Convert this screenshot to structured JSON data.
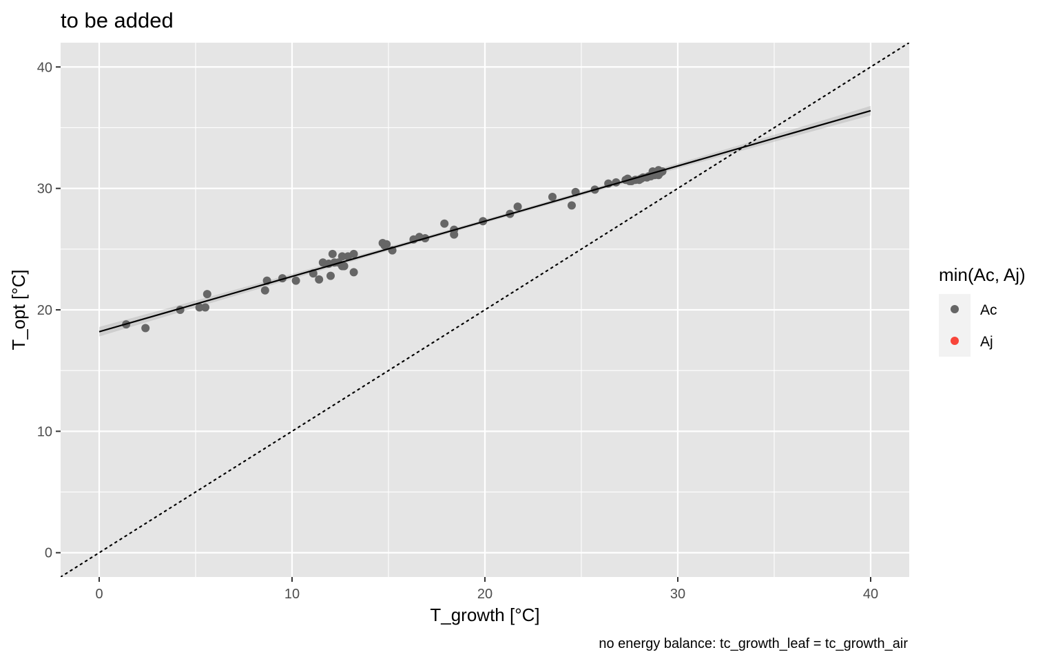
{
  "chart_data": {
    "type": "scatter",
    "title": "to be added",
    "caption": "no energy balance: tc_growth_leaf = tc_growth_air",
    "xlabel": "T_growth [°C]",
    "ylabel": "T_opt [°C]",
    "xlim": [
      -2,
      42
    ],
    "ylim": [
      -2,
      42
    ],
    "x_ticks": [
      0,
      10,
      20,
      30,
      40
    ],
    "y_ticks": [
      0,
      10,
      20,
      30,
      40
    ],
    "x_tick_labels": [
      "0",
      "10",
      "20",
      "30",
      "40"
    ],
    "y_tick_labels": [
      "0",
      "10",
      "20",
      "30",
      "40"
    ],
    "grid": true,
    "legend": {
      "title": "min(Ac, Aj)",
      "placement": "right",
      "entries": [
        {
          "label": "Ac",
          "color": "#666666"
        },
        {
          "label": "Aj",
          "color": "#f8453a"
        }
      ]
    },
    "series": [
      {
        "name": "Ac",
        "color": "#666666",
        "points": [
          [
            1.4,
            18.8
          ],
          [
            2.4,
            18.5
          ],
          [
            4.2,
            20.0
          ],
          [
            5.2,
            20.2
          ],
          [
            5.5,
            20.2
          ],
          [
            5.6,
            21.3
          ],
          [
            8.6,
            21.6
          ],
          [
            8.7,
            22.4
          ],
          [
            9.5,
            22.6
          ],
          [
            10.2,
            22.4
          ],
          [
            11.1,
            23.0
          ],
          [
            11.4,
            22.5
          ],
          [
            11.6,
            23.9
          ],
          [
            11.9,
            23.8
          ],
          [
            12.0,
            22.8
          ],
          [
            12.1,
            24.6
          ],
          [
            12.2,
            23.9
          ],
          [
            12.4,
            23.9
          ],
          [
            12.6,
            23.6
          ],
          [
            12.6,
            24.4
          ],
          [
            12.7,
            23.6
          ],
          [
            12.9,
            24.4
          ],
          [
            13.2,
            23.1
          ],
          [
            13.2,
            24.6
          ],
          [
            14.7,
            25.5
          ],
          [
            14.8,
            25.3
          ],
          [
            14.9,
            25.4
          ],
          [
            15.2,
            24.9
          ],
          [
            16.3,
            25.8
          ],
          [
            16.6,
            26.0
          ],
          [
            16.9,
            25.9
          ],
          [
            17.9,
            27.1
          ],
          [
            18.4,
            26.6
          ],
          [
            18.4,
            26.2
          ],
          [
            19.9,
            27.3
          ],
          [
            21.3,
            27.9
          ],
          [
            21.7,
            28.5
          ],
          [
            23.5,
            29.3
          ],
          [
            24.5,
            28.6
          ],
          [
            24.7,
            29.7
          ],
          [
            25.7,
            29.9
          ],
          [
            26.4,
            30.4
          ],
          [
            26.8,
            30.5
          ],
          [
            27.3,
            30.7
          ],
          [
            27.4,
            30.8
          ],
          [
            27.5,
            30.6
          ],
          [
            27.6,
            30.6
          ],
          [
            27.8,
            30.7
          ],
          [
            28.0,
            30.7
          ],
          [
            28.1,
            30.8
          ],
          [
            28.2,
            30.9
          ],
          [
            28.4,
            30.9
          ],
          [
            28.5,
            31.0
          ],
          [
            28.6,
            31.0
          ],
          [
            28.7,
            31.4
          ],
          [
            28.8,
            31.1
          ],
          [
            28.9,
            31.2
          ],
          [
            29.0,
            31.5
          ],
          [
            29.0,
            31.1
          ],
          [
            29.1,
            31.3
          ],
          [
            29.2,
            31.4
          ]
        ]
      },
      {
        "name": "Aj",
        "color": "#f8453a",
        "points": []
      }
    ],
    "fit_line": {
      "x": [
        0,
        40
      ],
      "y": [
        18.2,
        36.4
      ],
      "color": "#000000",
      "ci_band": true
    },
    "reference_line": {
      "type": "identity",
      "style": "dotted",
      "color": "#000000"
    },
    "panel_background": "#e5e5e5",
    "grid_color": "#ffffff"
  }
}
